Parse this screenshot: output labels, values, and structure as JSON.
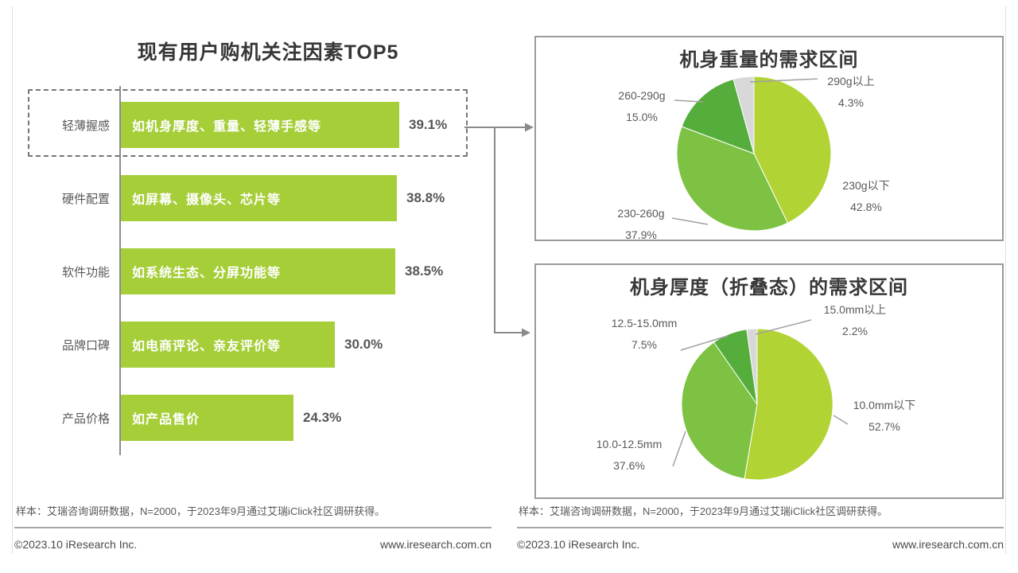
{
  "footer": {
    "note": "样本：艾瑞咨询调研数据，N=2000，于2023年9月通过艾瑞iClick社区调研获得。",
    "copyright": "©2023.10 iResearch Inc.",
    "website": "www.iresearch.com.cn"
  },
  "colors": {
    "bar_green": "#a6ce39",
    "pie_green_light": "#b2d334",
    "pie_green_mid": "#7dc242",
    "pie_green_dark": "#55ad3c",
    "pie_gray": "#d8d8d8",
    "text_dark": "#383838",
    "text_gray": "#595959",
    "line_gray": "#8c8c8c"
  },
  "chart_data": [
    {
      "type": "bar",
      "title": "现有用户购机关注因素TOP5",
      "orientation": "horizontal",
      "categories": [
        "轻薄握感",
        "硬件配置",
        "软件功能",
        "品牌口碑",
        "产品价格"
      ],
      "bar_texts": [
        "如机身厚度、重量、轻薄手感等",
        "如屏幕、摄像头、芯片等",
        "如系统生态、分屏功能等",
        "如电商评论、亲友评价等",
        "如产品售价"
      ],
      "values": [
        39.1,
        38.8,
        38.5,
        30.0,
        24.3
      ],
      "value_labels": [
        "39.1%",
        "38.8%",
        "38.5%",
        "30.0%",
        "24.3%"
      ],
      "highlighted_category": "轻薄握感",
      "bar_color": "#a6ce39",
      "xlim": [
        0,
        43
      ]
    },
    {
      "type": "pie",
      "title": "机身重量的需求区间",
      "start_angle": "12-oclock",
      "direction": "clockwise",
      "slices": [
        {
          "label": "230g以下",
          "value": 42.8,
          "value_label": "42.8%",
          "color": "#b2d334"
        },
        {
          "label": "230-260g",
          "value": 37.9,
          "value_label": "37.9%",
          "color": "#7dc242"
        },
        {
          "label": "260-290g",
          "value": 15.0,
          "value_label": "15.0%",
          "color": "#55ad3c"
        },
        {
          "label": "290g以上",
          "value": 4.3,
          "value_label": "4.3%",
          "color": "#d8d8d8"
        }
      ]
    },
    {
      "type": "pie",
      "title": "机身厚度（折叠态）的需求区间",
      "start_angle": "12-oclock",
      "direction": "clockwise",
      "slices": [
        {
          "label": "10.0mm以下",
          "value": 52.7,
          "value_label": "52.7%",
          "color": "#b2d334"
        },
        {
          "label": "10.0-12.5mm",
          "value": 37.6,
          "value_label": "37.6%",
          "color": "#7dc242"
        },
        {
          "label": "12.5-15.0mm",
          "value": 7.5,
          "value_label": "7.5%",
          "color": "#55ad3c"
        },
        {
          "label": "15.0mm以上",
          "value": 2.2,
          "value_label": "2.2%",
          "color": "#d8d8d8"
        }
      ]
    }
  ]
}
